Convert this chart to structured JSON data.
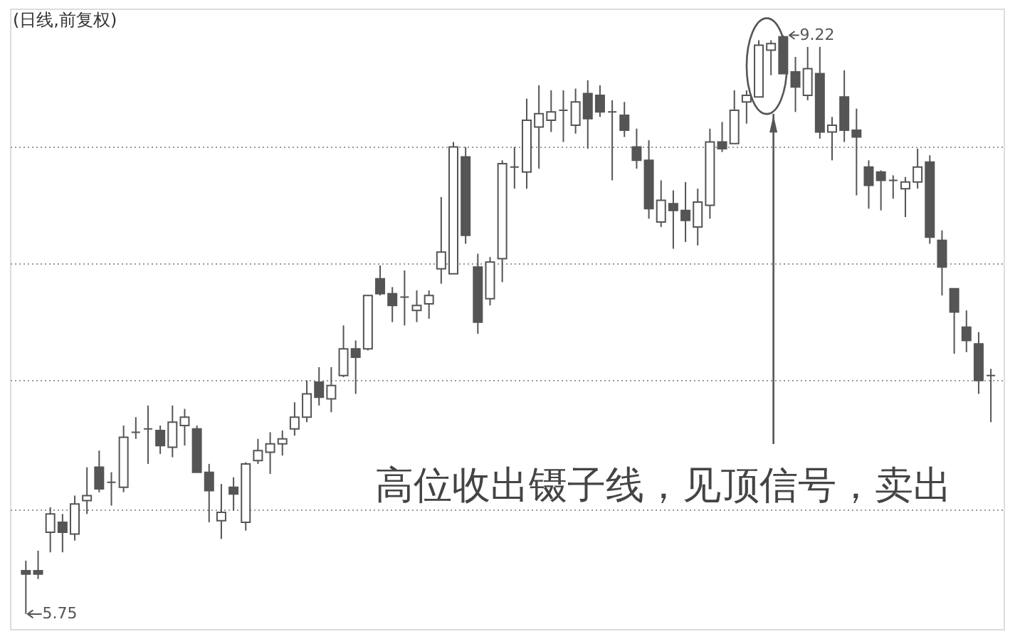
{
  "chart_data": {
    "type": "candlestick",
    "title": "(日线,前复权)",
    "categories": [
      null,
      null,
      null,
      null,
      null,
      null,
      null,
      null,
      null,
      null,
      null,
      null,
      null,
      null,
      null,
      null,
      null,
      null,
      null,
      null,
      null,
      null,
      null,
      null,
      null,
      null,
      null,
      null,
      null,
      null,
      null,
      null,
      null,
      null,
      null,
      null,
      null,
      null,
      null,
      null,
      null,
      null,
      null,
      null,
      null,
      null,
      null,
      null,
      null,
      null,
      null,
      null,
      null,
      null,
      null,
      null,
      null,
      null,
      null,
      null,
      null,
      null,
      null,
      null,
      null,
      null,
      null,
      null,
      null,
      null,
      null,
      null,
      null,
      null,
      null,
      null,
      null,
      null,
      null,
      null
    ],
    "ohlc": [
      [
        6.01,
        6.07,
        5.75,
        5.99
      ],
      [
        6.01,
        6.13,
        5.96,
        5.99
      ],
      [
        6.24,
        6.39,
        6.12,
        6.35
      ],
      [
        6.3,
        6.35,
        6.12,
        6.24
      ],
      [
        6.23,
        6.46,
        6.19,
        6.41
      ],
      [
        6.43,
        6.63,
        6.35,
        6.46
      ],
      [
        6.63,
        6.73,
        6.48,
        6.5
      ],
      [
        6.54,
        6.6,
        6.4,
        6.54
      ],
      [
        6.51,
        6.88,
        6.48,
        6.81
      ],
      [
        6.84,
        6.93,
        6.8,
        6.84
      ],
      [
        6.86,
        7.0,
        6.65,
        6.86
      ],
      [
        6.85,
        6.88,
        6.71,
        6.76
      ],
      [
        6.75,
        7.0,
        6.69,
        6.9
      ],
      [
        6.88,
        6.98,
        6.76,
        6.93
      ],
      [
        6.86,
        6.88,
        6.6,
        6.6
      ],
      [
        6.6,
        6.65,
        6.3,
        6.49
      ],
      [
        6.31,
        6.53,
        6.2,
        6.36
      ],
      [
        6.51,
        6.57,
        6.37,
        6.47
      ],
      [
        6.3,
        6.66,
        6.25,
        6.65
      ],
      [
        6.67,
        6.8,
        6.65,
        6.73
      ],
      [
        6.72,
        6.84,
        6.59,
        6.77
      ],
      [
        6.77,
        6.85,
        6.7,
        6.8
      ],
      [
        6.86,
        7.02,
        6.82,
        6.93
      ],
      [
        6.93,
        7.15,
        6.9,
        7.07
      ],
      [
        7.14,
        7.23,
        7.0,
        7.05
      ],
      [
        7.04,
        7.23,
        6.96,
        7.12
      ],
      [
        7.18,
        7.48,
        7.17,
        7.34
      ],
      [
        7.34,
        7.39,
        7.07,
        7.29
      ],
      [
        7.34,
        7.66,
        7.33,
        7.66
      ],
      [
        7.76,
        7.84,
        7.66,
        7.67
      ],
      [
        7.67,
        7.71,
        7.5,
        7.6
      ],
      [
        7.65,
        7.81,
        7.48,
        7.65
      ],
      [
        7.57,
        7.69,
        7.5,
        7.6
      ],
      [
        7.61,
        7.69,
        7.52,
        7.66
      ],
      [
        7.82,
        8.25,
        7.73,
        7.92
      ],
      [
        7.79,
        8.58,
        7.79,
        8.55
      ],
      [
        8.49,
        8.55,
        7.97,
        8.02
      ],
      [
        7.83,
        7.91,
        7.43,
        7.5
      ],
      [
        7.64,
        7.89,
        7.6,
        7.86
      ],
      [
        7.88,
        8.47,
        7.74,
        8.45
      ],
      [
        8.43,
        8.55,
        8.3,
        8.43
      ],
      [
        8.4,
        8.84,
        8.3,
        8.71
      ],
      [
        8.67,
        8.92,
        8.42,
        8.75
      ],
      [
        8.71,
        8.89,
        8.64,
        8.76
      ],
      [
        8.77,
        8.89,
        8.58,
        8.77
      ],
      [
        8.68,
        8.9,
        8.63,
        8.82
      ],
      [
        8.87,
        8.95,
        8.54,
        8.72
      ],
      [
        8.86,
        8.92,
        8.73,
        8.76
      ],
      [
        8.76,
        8.83,
        8.35,
        8.76
      ],
      [
        8.74,
        8.82,
        8.61,
        8.65
      ],
      [
        8.55,
        8.66,
        8.42,
        8.47
      ],
      [
        8.47,
        8.59,
        8.12,
        8.18
      ],
      [
        8.1,
        8.35,
        8.07,
        8.23
      ],
      [
        8.21,
        8.29,
        7.94,
        8.17
      ],
      [
        8.17,
        8.34,
        7.98,
        8.11
      ],
      [
        8.07,
        8.3,
        7.96,
        8.22
      ],
      [
        8.2,
        8.66,
        8.12,
        8.58
      ],
      [
        8.58,
        8.7,
        8.52,
        8.54
      ],
      [
        8.57,
        8.89,
        8.57,
        8.77
      ],
      [
        8.82,
        8.89,
        8.69,
        8.86
      ],
      [
        8.85,
        9.19,
        8.85,
        9.16
      ],
      [
        9.13,
        9.19,
        8.98,
        9.17
      ],
      [
        9.21,
        9.22,
        8.99,
        8.99
      ],
      [
        9.0,
        9.09,
        8.76,
        8.91
      ],
      [
        8.86,
        9.15,
        8.83,
        9.02
      ],
      [
        8.99,
        9.15,
        8.6,
        8.64
      ],
      [
        8.64,
        8.73,
        8.47,
        8.68
      ],
      [
        8.85,
        9.01,
        8.58,
        8.65
      ],
      [
        8.65,
        8.78,
        8.26,
        8.61
      ],
      [
        8.43,
        8.47,
        8.18,
        8.32
      ],
      [
        8.4,
        8.41,
        8.17,
        8.35
      ],
      [
        8.35,
        8.38,
        8.24,
        8.35
      ],
      [
        8.3,
        8.37,
        8.13,
        8.34
      ],
      [
        8.34,
        8.54,
        8.3,
        8.43
      ],
      [
        8.46,
        8.5,
        7.97,
        8.01
      ],
      [
        7.99,
        8.05,
        7.66,
        7.83
      ],
      [
        7.7,
        7.7,
        7.31,
        7.56
      ],
      [
        7.47,
        7.57,
        7.32,
        7.39
      ],
      [
        7.37,
        7.44,
        7.07,
        7.15
      ],
      [
        7.18,
        7.22,
        6.9,
        7.18
      ]
    ],
    "color": "#555555",
    "ylim": [
      5.66,
      9.38
    ],
    "yticks": [
      {
        "value": 6.38,
        "label": null
      },
      {
        "value": 7.15,
        "label": null
      },
      {
        "value": 7.85,
        "label": null
      },
      {
        "value": 8.55,
        "label": null
      }
    ],
    "grid": "y",
    "tick_labels": false,
    "annotations": [
      "9.22",
      "5.75",
      "高位收出镊子线，见顶信号，卖出"
    ]
  }
}
